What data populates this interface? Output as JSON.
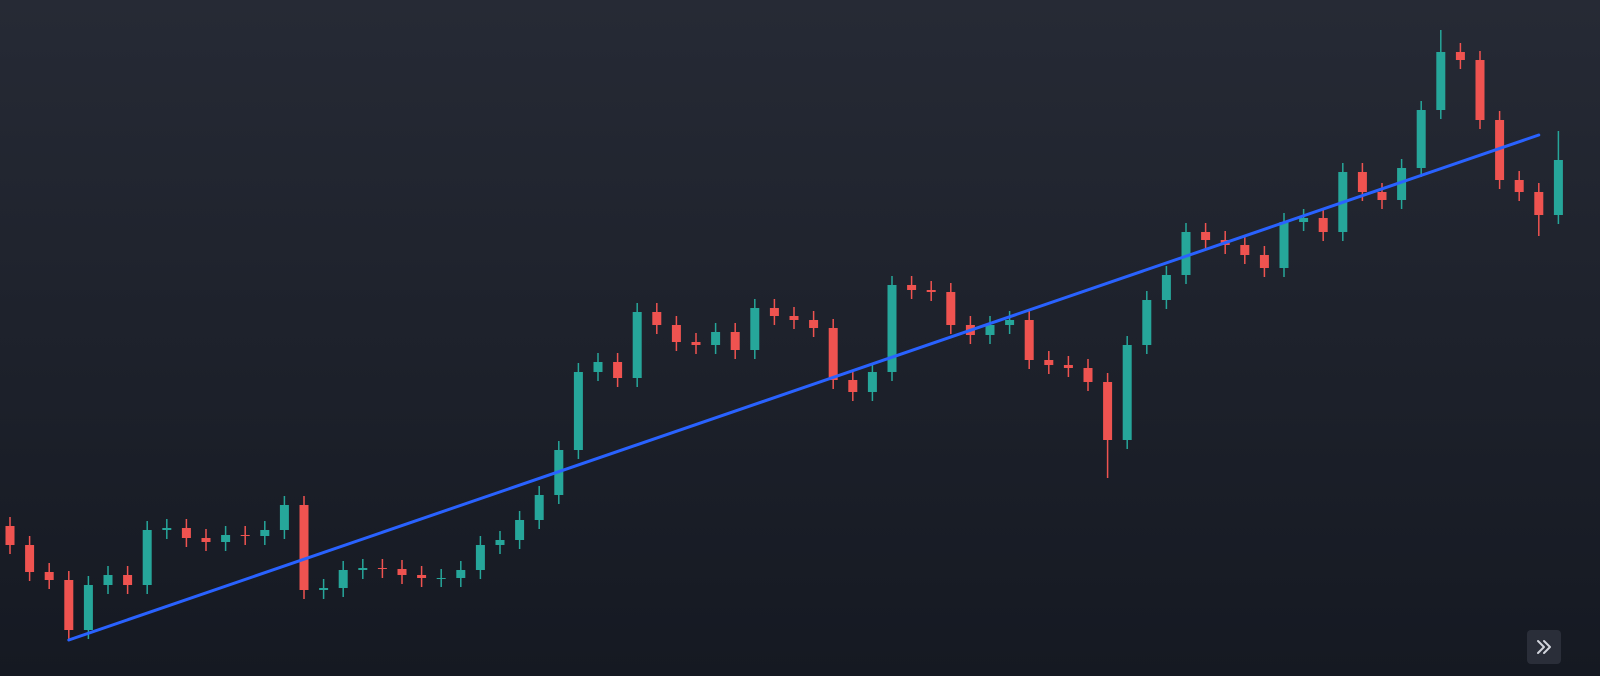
{
  "chart_data": {
    "type": "candlestick",
    "open": [
      150,
      131,
      104,
      96,
      46,
      91,
      101,
      91,
      146,
      148,
      138,
      134,
      141,
      140,
      146,
      171,
      86,
      88,
      106,
      108,
      107,
      101,
      98,
      98,
      106,
      131,
      136,
      156,
      181,
      226,
      304,
      314,
      298,
      364,
      351,
      334,
      331,
      344,
      326,
      368,
      360,
      356,
      348,
      296,
      284,
      304,
      391,
      386,
      384,
      351,
      341,
      351,
      356,
      316,
      311,
      308,
      294,
      236,
      331,
      376,
      401,
      444,
      436,
      431,
      421,
      408,
      454,
      458,
      444,
      504,
      484,
      476,
      508,
      566,
      624,
      616,
      556,
      496,
      484,
      461
    ],
    "high": [
      159,
      140,
      113,
      105,
      100,
      110,
      110,
      155,
      157,
      157,
      147,
      150,
      150,
      155,
      180,
      180,
      97,
      115,
      117,
      117,
      116,
      110,
      107,
      115,
      140,
      145,
      165,
      190,
      235,
      313,
      323,
      323,
      373,
      373,
      360,
      343,
      353,
      353,
      377,
      377,
      369,
      365,
      357,
      305,
      313,
      400,
      400,
      395,
      393,
      360,
      360,
      365,
      365,
      325,
      320,
      317,
      303,
      340,
      385,
      410,
      453,
      453,
      445,
      440,
      430,
      463,
      467,
      467,
      513,
      513,
      493,
      517,
      575,
      646,
      633,
      625,
      565,
      505,
      493,
      545
    ],
    "low": [
      122,
      95,
      87,
      37,
      37,
      82,
      82,
      82,
      137,
      129,
      125,
      125,
      131,
      131,
      137,
      77,
      77,
      79,
      97,
      98,
      92,
      89,
      89,
      89,
      97,
      122,
      127,
      147,
      172,
      217,
      295,
      289,
      289,
      342,
      325,
      322,
      322,
      317,
      317,
      351,
      347,
      339,
      287,
      275,
      275,
      295,
      377,
      375,
      342,
      332,
      332,
      342,
      307,
      302,
      299,
      285,
      198,
      227,
      322,
      367,
      392,
      427,
      422,
      412,
      399,
      399,
      445,
      435,
      435,
      475,
      467,
      467,
      499,
      557,
      607,
      547,
      487,
      475,
      440,
      452
    ],
    "close": [
      131,
      104,
      96,
      46,
      91,
      101,
      91,
      146,
      148,
      138,
      134,
      141,
      140,
      146,
      171,
      86,
      88,
      106,
      108,
      107,
      101,
      98,
      98,
      106,
      131,
      136,
      156,
      181,
      226,
      304,
      314,
      298,
      364,
      351,
      334,
      331,
      344,
      326,
      368,
      360,
      356,
      348,
      296,
      284,
      304,
      391,
      386,
      384,
      351,
      341,
      351,
      356,
      316,
      311,
      308,
      294,
      236,
      331,
      376,
      401,
      444,
      436,
      431,
      421,
      408,
      454,
      458,
      444,
      504,
      484,
      476,
      508,
      566,
      624,
      616,
      556,
      496,
      484,
      461,
      516
    ],
    "up_color": "#26a69a",
    "down_color": "#ef5350",
    "ylim": [
      0,
      676
    ],
    "trend_line": {
      "x": [
        3,
        78
      ],
      "values": [
        36,
        541
      ],
      "color": "#2962ff"
    }
  }
}
